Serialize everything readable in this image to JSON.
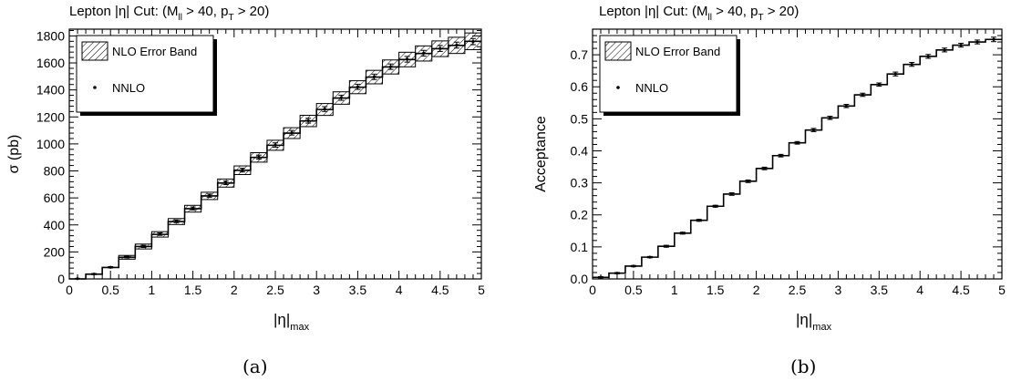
{
  "charts": [
    {
      "chart_data": {
        "type": "line",
        "title_parts": [
          "Lepton |η| Cut: (M",
          "ll",
          " > 40, p",
          "T",
          " > 20)"
        ],
        "xlabel_parts": [
          "|η|",
          "max"
        ],
        "ylabel": "σ (pb)",
        "xlim": [
          0,
          5
        ],
        "ylim": [
          0,
          1850
        ],
        "x_ticks": [
          0,
          0.5,
          1,
          1.5,
          2,
          2.5,
          3,
          3.5,
          4,
          4.5,
          5
        ],
        "y_ticks": [
          0,
          200,
          400,
          600,
          800,
          1000,
          1200,
          1400,
          1600,
          1800
        ],
        "bin_width": 0.2,
        "bin_edges_start": 0,
        "legend": {
          "placement": "top-left",
          "entries": [
            "NLO Error Band",
            "NNLO"
          ]
        },
        "series": [
          {
            "name": "NLO Error Band",
            "kind": "step_band",
            "values": [
              0,
              35,
              85,
              160,
              240,
              330,
              425,
              520,
              615,
              710,
              805,
              900,
              990,
              1080,
              1170,
              1255,
              1340,
              1420,
              1495,
              1570,
              1625,
              1670,
              1705,
              1730,
              1760
            ],
            "band_halfwidth": [
              0,
              6,
              10,
              14,
              18,
              20,
              22,
              25,
              27,
              30,
              32,
              35,
              37,
              40,
              42,
              44,
              46,
              48,
              50,
              52,
              54,
              56,
              58,
              60,
              62
            ]
          },
          {
            "name": "NNLO",
            "kind": "points_with_errors",
            "values": [
              2,
              36,
              86,
              162,
              241,
              332,
              427,
              522,
              617,
              712,
              806,
              902,
              992,
              1083,
              1172,
              1258,
              1342,
              1423,
              1497,
              1572,
              1627,
              1672,
              1707,
              1732,
              1758
            ],
            "errors": [
              2,
              4,
              5,
              6,
              8,
              9,
              10,
              11,
              12,
              13,
              14,
              15,
              16,
              17,
              18,
              18,
              19,
              19,
              20,
              20,
              21,
              21,
              22,
              22,
              23
            ]
          }
        ]
      },
      "caption": "(a)"
    },
    {
      "chart_data": {
        "type": "line",
        "title_parts": [
          "Lepton |η| Cut: (M",
          "ll",
          " > 40, p",
          "T",
          " > 20)"
        ],
        "xlabel_parts": [
          "|η|",
          "max"
        ],
        "ylabel": "Acceptance",
        "xlim": [
          0,
          5
        ],
        "ylim": [
          0,
          0.78
        ],
        "x_ticks": [
          0,
          0.5,
          1,
          1.5,
          2,
          2.5,
          3,
          3.5,
          4,
          4.5,
          5
        ],
        "y_ticks": [
          0,
          0.1,
          0.2,
          0.3,
          0.4,
          0.5,
          0.6,
          0.7
        ],
        "bin_width": 0.2,
        "bin_edges_start": 0,
        "legend": {
          "placement": "top-left",
          "entries": [
            "NLO Error Band",
            "NNLO"
          ]
        },
        "series": [
          {
            "name": "NLO Error Band",
            "kind": "step_band",
            "values": [
              0.005,
              0.018,
              0.04,
              0.068,
              0.102,
              0.143,
              0.183,
              0.227,
              0.265,
              0.305,
              0.345,
              0.385,
              0.425,
              0.465,
              0.503,
              0.54,
              0.575,
              0.607,
              0.64,
              0.67,
              0.695,
              0.715,
              0.73,
              0.74,
              0.748
            ],
            "band_halfwidth": [
              0.001,
              0.001,
              0.001,
              0.001,
              0.001,
              0.001,
              0.001,
              0.001,
              0.001,
              0.001,
              0.001,
              0.001,
              0.001,
              0.001,
              0.001,
              0.001,
              0.001,
              0.001,
              0.001,
              0.001,
              0.001,
              0.001,
              0.001,
              0.001,
              0.001
            ]
          },
          {
            "name": "NNLO",
            "kind": "points_with_errors",
            "values": [
              0.005,
              0.018,
              0.04,
              0.068,
              0.102,
              0.143,
              0.183,
              0.227,
              0.265,
              0.305,
              0.345,
              0.385,
              0.425,
              0.465,
              0.503,
              0.54,
              0.575,
              0.607,
              0.64,
              0.67,
              0.695,
              0.715,
              0.73,
              0.74,
              0.748
            ],
            "errors": [
              0.002,
              0.002,
              0.002,
              0.002,
              0.003,
              0.003,
              0.003,
              0.003,
              0.004,
              0.004,
              0.004,
              0.004,
              0.004,
              0.005,
              0.005,
              0.005,
              0.005,
              0.005,
              0.006,
              0.006,
              0.006,
              0.006,
              0.006,
              0.006,
              0.007
            ]
          }
        ]
      },
      "caption": "(b)"
    }
  ]
}
